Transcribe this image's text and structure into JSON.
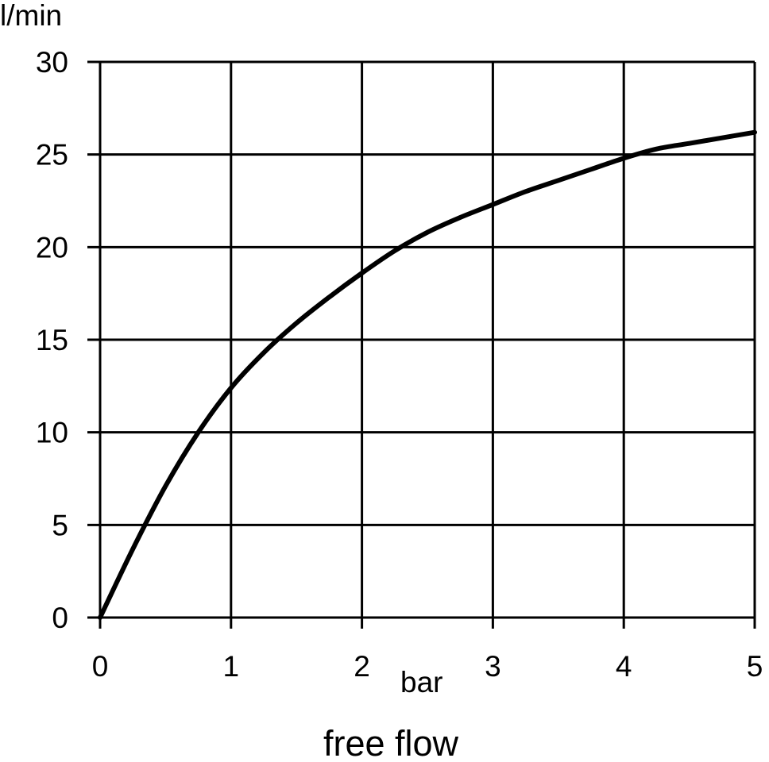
{
  "chart_data": {
    "type": "line",
    "title": "",
    "xlabel": "bar",
    "ylabel": "l/min",
    "caption": "free flow",
    "xlim": [
      0,
      5
    ],
    "ylim": [
      0,
      30
    ],
    "x_ticks": [
      0,
      1,
      2,
      3,
      4,
      5
    ],
    "y_ticks": [
      0,
      5,
      10,
      15,
      20,
      25,
      30
    ],
    "grid": true,
    "legend": "none",
    "series": [
      {
        "x": [
          0,
          0.25,
          0.5,
          0.75,
          1.0,
          1.25,
          1.5,
          1.75,
          2.0,
          2.25,
          2.5,
          2.75,
          3.0,
          3.25,
          3.5,
          3.75,
          4.0,
          4.25,
          4.5,
          4.75,
          5.0
        ],
        "y": [
          0,
          3.7,
          7.1,
          10.0,
          12.4,
          14.3,
          15.9,
          17.3,
          18.6,
          19.8,
          20.8,
          21.6,
          22.3,
          23.0,
          23.6,
          24.2,
          24.8,
          25.3,
          25.6,
          25.9,
          26.2
        ],
        "color": "#000000"
      }
    ]
  }
}
